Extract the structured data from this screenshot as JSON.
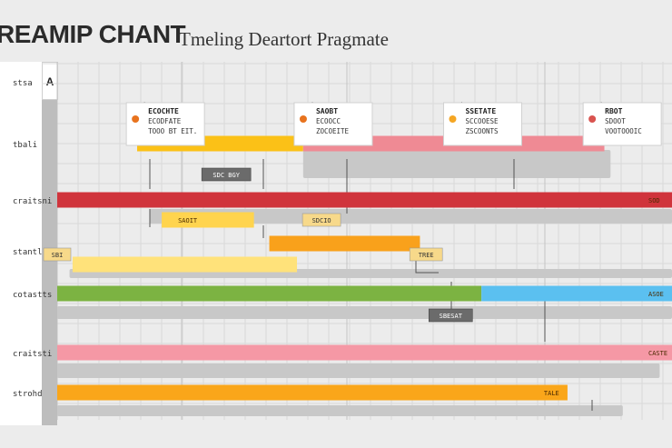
{
  "title": "REAMIP CHANT",
  "subtitle": "Tmeling Deartort Pragmate",
  "corner_label": "A",
  "colors": {
    "background": "#ececec",
    "grid": "#d9d9d9",
    "side_column": "#ffffff",
    "gray_bar": "#c8c8c8",
    "dark_tag": "#6b6b6b",
    "connector": "#555555"
  },
  "chart_data": {
    "type": "gantt",
    "title": "REAMIP CHANT",
    "subtitle": "Tmeling Deartort Pragmate",
    "x_range": [
      0,
      10
    ],
    "grid": true,
    "rows": [
      {
        "label": "stsa"
      },
      {
        "label": "tbali"
      },
      {
        "label": "craitsni"
      },
      {
        "label": "stantl"
      },
      {
        "label": "cotastts"
      },
      {
        "label": "craitsti"
      },
      {
        "label": "strohd"
      }
    ],
    "milestones": [
      {
        "title": "ECOCHTE",
        "lines": [
          "ECODFATE",
          "TOOO BT EIT."
        ],
        "x": 1.42,
        "color": "#e8731e"
      },
      {
        "title": "SAOBT",
        "lines": [
          "ECOOCC",
          "ZOCOEITE"
        ],
        "x": 4.15,
        "color": "#e8731e"
      },
      {
        "title": "SSETATE",
        "lines": [
          "SCCOOESE",
          "ZSCOONTS"
        ],
        "x": 6.58,
        "color": "#f5a623"
      },
      {
        "title": "RBOT",
        "lines": [
          "SDOOT",
          "VOOTOOOIC"
        ],
        "x": 8.85,
        "color": "#d9534f"
      }
    ],
    "bars": [
      {
        "row": 1,
        "start": 1.3,
        "end": 4.0,
        "color": "#fbc117",
        "label": ""
      },
      {
        "row": 1,
        "start": 4.0,
        "end": 8.9,
        "color": "#ef8a94",
        "label": ""
      },
      {
        "row": 2,
        "start": 0.0,
        "end": 10.0,
        "color": "#d0343c",
        "label": "SOD"
      },
      {
        "row": 3,
        "start": 1.7,
        "end": 3.2,
        "color": "#ffd44e",
        "label": "SAOIT"
      },
      {
        "row": 3,
        "start": 3.45,
        "end": 5.9,
        "color": "#f9a11b",
        "label": ""
      },
      {
        "row": 3,
        "start": 0.25,
        "end": 3.9,
        "color": "#ffe27a",
        "label": ""
      },
      {
        "row": 4,
        "start": 0.0,
        "end": 6.9,
        "color": "#7cb342",
        "label": ""
      },
      {
        "row": 4,
        "start": 6.9,
        "end": 10.0,
        "color": "#5bc0f0",
        "label": "ASOE"
      },
      {
        "row": 5,
        "start": 0.0,
        "end": 10.0,
        "color": "#f598a5",
        "label": "CASTE"
      },
      {
        "row": 6,
        "start": 0.0,
        "end": 8.3,
        "color": "#faa61a",
        "label": "TALE"
      }
    ],
    "tags": [
      {
        "text": "SDC BGY",
        "x": 2.75,
        "row": 1,
        "style": "dark"
      },
      {
        "text": "SDCIO",
        "x": 4.3,
        "row": 2,
        "style": "light"
      },
      {
        "text": "SBESAT",
        "x": 6.4,
        "row": 4,
        "style": "dark"
      },
      {
        "text": "TREE",
        "x": 6.0,
        "row": 3,
        "style": "light"
      },
      {
        "text": "SBI",
        "x": 0.0,
        "row": 3,
        "style": "light"
      }
    ]
  }
}
